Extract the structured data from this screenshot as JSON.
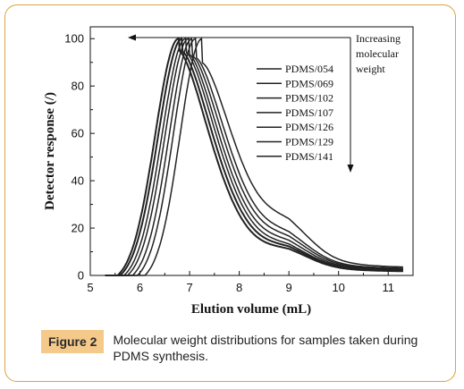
{
  "figure": {
    "label": "Figure 2",
    "caption": "Molecular weight distributions for samples taken during PDMS synthesis."
  },
  "chart_data": {
    "type": "line",
    "title": "",
    "xlabel": "Elution volume (mL)",
    "ylabel": "Detector response (/)",
    "xlim": [
      5,
      11.5
    ],
    "ylim": [
      0,
      105
    ],
    "xticks": [
      "5",
      "6",
      "7",
      "8",
      "9",
      "10",
      "11"
    ],
    "yticks": [
      "0",
      "20",
      "40",
      "60",
      "80",
      "100"
    ],
    "grid": false,
    "legend_position": "top-right",
    "annotation": {
      "lines": [
        "Increasing",
        "molecular",
        "weight"
      ]
    },
    "series": [
      {
        "name": "PDMS/054",
        "peak": 6.78,
        "onset": 5.55,
        "tail_at_9": 8,
        "tail_at_11": 1.5
      },
      {
        "name": "PDMS/069",
        "peak": 6.85,
        "onset": 5.6,
        "tail_at_9": 8.5,
        "tail_at_11": 1.7
      },
      {
        "name": "PDMS/102",
        "peak": 6.92,
        "onset": 5.68,
        "tail_at_9": 9,
        "tail_at_11": 1.8
      },
      {
        "name": "PDMS/107",
        "peak": 6.98,
        "onset": 5.75,
        "tail_at_9": 10,
        "tail_at_11": 2.0
      },
      {
        "name": "PDMS/126",
        "peak": 7.05,
        "onset": 5.85,
        "tail_at_9": 11,
        "tail_at_11": 2.3
      },
      {
        "name": "PDMS/129",
        "peak": 7.12,
        "onset": 5.95,
        "tail_at_9": 12,
        "tail_at_11": 2.6
      },
      {
        "name": "PDMS/141",
        "peak": 7.25,
        "onset": 6.1,
        "tail_at_9": 16,
        "tail_at_11": 3.0
      }
    ]
  }
}
